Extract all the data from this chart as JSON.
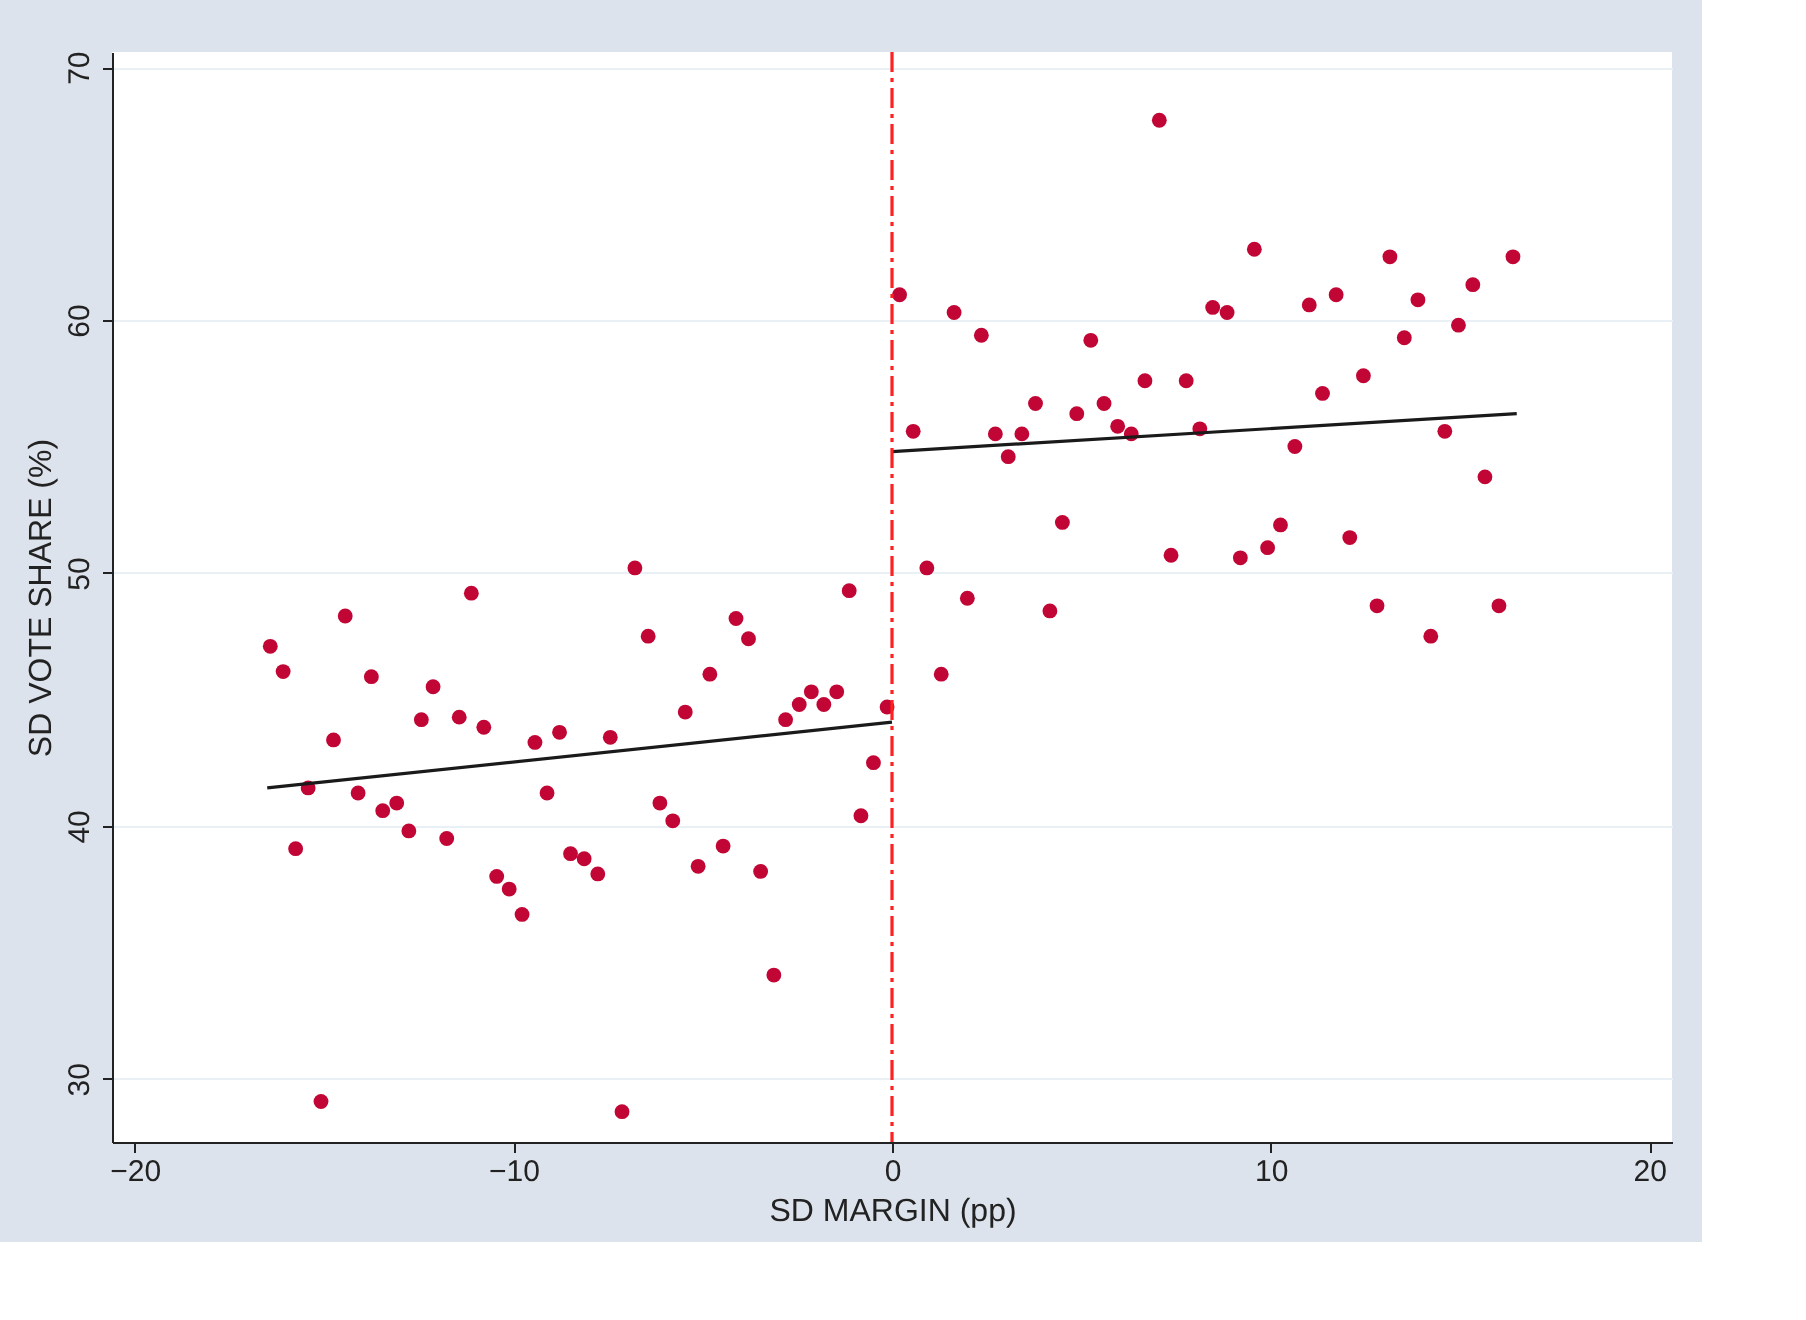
{
  "chart_data": {
    "type": "scatter",
    "xlabel": "SD MARGIN (pp)",
    "ylabel": "SD VOTE SHARE (%)",
    "xlim": [
      -20.6,
      20.6
    ],
    "ylim": [
      27.5,
      70.6
    ],
    "xticks": [
      -20,
      -10,
      0,
      10,
      20
    ],
    "yticks": [
      30,
      40,
      50,
      60,
      70
    ],
    "grid": "y",
    "marker": "circle",
    "series": [
      {
        "color": "#c10534",
        "x": [
          -16.42,
          -16.08,
          -14.44,
          -11.11,
          -13.75,
          -12.12,
          -12.43,
          -11.43,
          -10.78,
          -9.43,
          -8.78,
          -14.75,
          -15.42,
          -14.1,
          -13.45,
          -13.08,
          -12.76,
          -11.76,
          -9.11,
          -15.75,
          -10.44,
          -10.11,
          -9.77,
          -8.49,
          -15.08,
          -6.79,
          -1.13,
          -4.12,
          -3.79,
          -6.44,
          -4.81,
          -7.44,
          -5.46,
          -2.81,
          -2.45,
          -2.13,
          -1.8,
          -1.46,
          -0.13,
          -0.49,
          -0.82,
          -6.13,
          -5.79,
          -4.46,
          -8.13,
          -7.77,
          -5.12,
          -3.47,
          -3.12,
          -7.13,
          7.06,
          0.2,
          1.64,
          2.36,
          5.25,
          8.47,
          6.68,
          7.77,
          3.79,
          4.88,
          5.6,
          5.96,
          6.32,
          8.13,
          0.56,
          2.73,
          3.43,
          3.07,
          4.5,
          7.37,
          0.92,
          1.99,
          4.17,
          1.3,
          9.57,
          13.15,
          16.4,
          8.85,
          11.02,
          11.73,
          13.89,
          15.34,
          14.96,
          13.53,
          12.45,
          11.37,
          10.64,
          14.6,
          15.66,
          10.26,
          9.92,
          9.2,
          12.09,
          12.81,
          16.03,
          14.23
        ],
        "values": [
          47.1,
          46.1,
          48.3,
          49.2,
          45.9,
          45.5,
          44.2,
          44.3,
          43.9,
          43.3,
          43.7,
          43.4,
          41.5,
          41.3,
          40.6,
          40.9,
          39.8,
          39.5,
          41.3,
          39.1,
          38.0,
          37.5,
          36.5,
          38.9,
          29.1,
          50.2,
          49.3,
          48.2,
          47.4,
          47.5,
          46.0,
          43.5,
          44.5,
          44.2,
          44.8,
          45.3,
          44.8,
          45.3,
          44.7,
          42.5,
          40.4,
          40.9,
          40.2,
          39.2,
          38.7,
          38.1,
          38.4,
          38.2,
          34.1,
          28.7,
          67.9,
          61.0,
          60.3,
          59.4,
          59.2,
          60.5,
          57.6,
          57.6,
          56.7,
          56.3,
          56.7,
          55.8,
          55.5,
          55.7,
          55.6,
          55.5,
          55.5,
          54.6,
          52.0,
          50.7,
          50.2,
          49.0,
          48.5,
          46.0,
          62.8,
          62.5,
          62.5,
          60.3,
          60.6,
          61.0,
          60.8,
          61.4,
          59.8,
          59.3,
          57.8,
          57.1,
          55.0,
          55.6,
          53.8,
          51.9,
          51.0,
          50.6,
          51.4,
          48.7,
          48.7,
          47.5
        ]
      },
      {
        "type": "line",
        "color": "#1a1a1a",
        "marker": "none",
        "line_style": "solid",
        "x": [
          -16.5,
          0
        ],
        "values": [
          41.5,
          44.1
        ]
      },
      {
        "type": "line",
        "color": "#1a1a1a",
        "marker": "none",
        "line_style": "solid",
        "x": [
          0,
          16.5
        ],
        "values": [
          54.8,
          56.3
        ]
      }
    ],
    "ref_lines": [
      {
        "axis": "x",
        "value": 0,
        "label": null,
        "color": "#ff2020",
        "line_style": "dashdot"
      }
    ]
  }
}
